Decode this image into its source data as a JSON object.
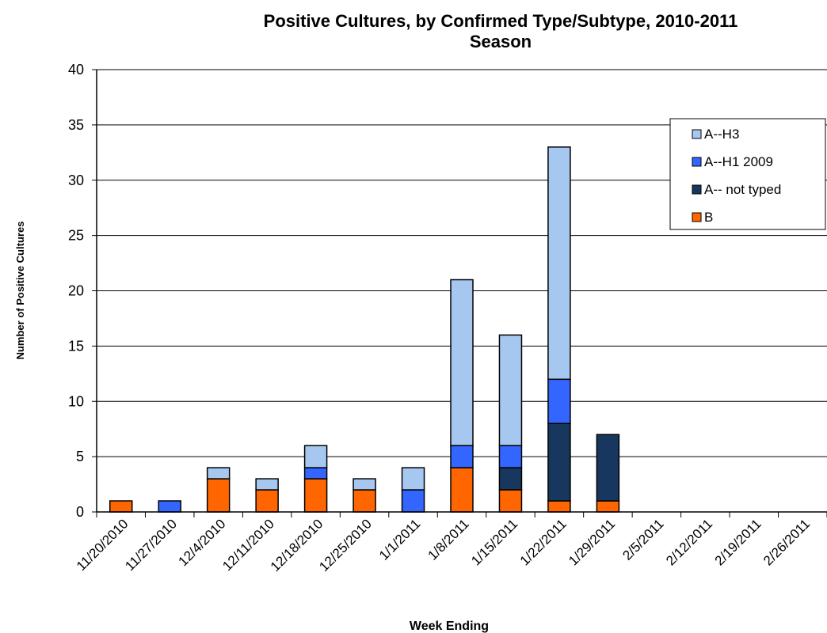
{
  "chart_data": {
    "type": "bar",
    "stacked": true,
    "title": "Positive Cultures, by Confirmed Type/Subtype, 2010-2011",
    "title_line2": "Season",
    "xlabel": "Week Ending",
    "ylabel": "Number of Positive Cultures",
    "ylim": [
      0,
      40
    ],
    "yticks": [
      0,
      5,
      10,
      15,
      20,
      25,
      30,
      35,
      40
    ],
    "grid": true,
    "legend_position": "top-right",
    "categories": [
      "11/20/2010",
      "11/27/2010",
      "12/4/2010",
      "12/11/2010",
      "12/18/2010",
      "12/25/2010",
      "1/1/2011",
      "1/8/2011",
      "1/15/2011",
      "1/22/2011",
      "1/29/2011",
      "2/5/2011",
      "2/12/2011",
      "2/19/2011",
      "2/26/2011"
    ],
    "series": [
      {
        "name": "B",
        "color": "#ff6600",
        "values": [
          1,
          0,
          3,
          2,
          3,
          2,
          0,
          4,
          2,
          1,
          1,
          0,
          0,
          0,
          0
        ]
      },
      {
        "name": "A-- not typed",
        "color": "#17375e",
        "values": [
          0,
          0,
          0,
          0,
          0,
          0,
          0,
          0,
          2,
          7,
          6,
          0,
          0,
          0,
          0
        ]
      },
      {
        "name": "A--H1 2009",
        "color": "#3366ff",
        "values": [
          0,
          1,
          0,
          0,
          1,
          0,
          2,
          2,
          2,
          4,
          0,
          0,
          0,
          0,
          0
        ]
      },
      {
        "name": "A--H3",
        "color": "#a6c8f0",
        "values": [
          0,
          0,
          1,
          1,
          2,
          1,
          2,
          15,
          10,
          21,
          0,
          0,
          0,
          0,
          0
        ]
      }
    ],
    "legend_order": [
      "A--H3",
      "A--H1 2009",
      "A-- not typed",
      "B"
    ]
  }
}
